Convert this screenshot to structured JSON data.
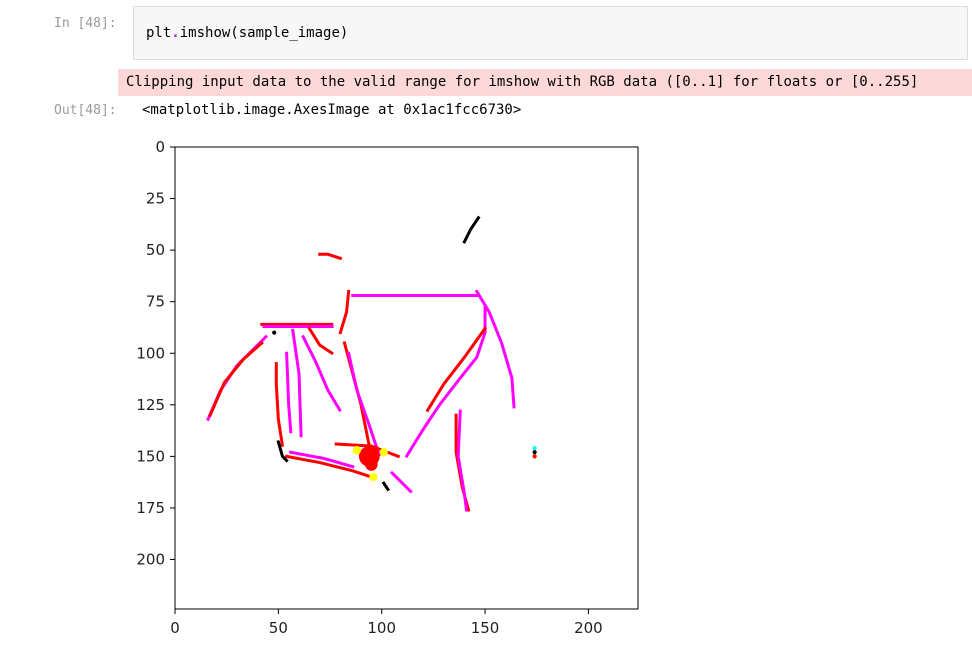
{
  "cell_in": {
    "prompt": "In [48]:",
    "code_object": "plt",
    "code_dot": ".",
    "code_call": "imshow(sample_image)"
  },
  "stderr": {
    "text": "Clipping input data to the valid range for imshow with RGB data ([0..1] for floats or [0..255]"
  },
  "cell_out": {
    "prompt": "Out[48]:",
    "text": "<matplotlib.image.AxesImage at 0x1ac1fcc6730>"
  },
  "chart_data": {
    "type": "image",
    "xlim": [
      0,
      224
    ],
    "ylim": [
      224,
      0
    ],
    "x_ticks": [
      "0",
      "50",
      "100",
      "150",
      "200"
    ],
    "y_ticks": [
      "0",
      "25",
      "50",
      "75",
      "100",
      "125",
      "150",
      "175",
      "200"
    ],
    "colors": {
      "red": "#ff0000",
      "magenta": "#ff00ff",
      "yellow": "#ffff00",
      "black": "#000000",
      "cyan": "#00ffff"
    },
    "strokes": [
      {
        "color": "magenta",
        "points": [
          [
            16,
            132
          ],
          [
            22,
            118
          ],
          [
            30,
            106
          ],
          [
            38,
            98
          ],
          [
            44,
            92
          ]
        ]
      },
      {
        "color": "red",
        "points": [
          [
            17,
            130
          ],
          [
            24,
            114
          ],
          [
            33,
            103
          ],
          [
            42,
            95
          ]
        ]
      },
      {
        "color": "red",
        "points": [
          [
            42,
            86
          ],
          [
            76,
            86
          ]
        ]
      },
      {
        "color": "magenta",
        "points": [
          [
            43,
            87
          ],
          [
            76,
            87
          ]
        ]
      },
      {
        "color": "magenta",
        "points": [
          [
            57,
            89
          ],
          [
            60,
            110
          ],
          [
            61,
            140
          ]
        ]
      },
      {
        "color": "red",
        "points": [
          [
            49,
            105
          ],
          [
            49,
            115
          ],
          [
            50,
            132
          ],
          [
            52,
            145
          ]
        ]
      },
      {
        "color": "magenta",
        "points": [
          [
            54,
            100
          ],
          [
            55,
            125
          ],
          [
            56,
            138
          ]
        ]
      },
      {
        "color": "magenta",
        "points": [
          [
            62,
            92
          ],
          [
            68,
            104
          ],
          [
            74,
            118
          ],
          [
            80,
            128
          ]
        ]
      },
      {
        "color": "red",
        "points": [
          [
            65,
            88
          ],
          [
            70,
            96
          ],
          [
            76,
            100
          ]
        ]
      },
      {
        "color": "red",
        "points": [
          [
            80,
            90
          ],
          [
            83,
            80
          ],
          [
            84,
            70
          ]
        ]
      },
      {
        "color": "magenta",
        "points": [
          [
            86,
            72
          ],
          [
            147,
            72
          ]
        ]
      },
      {
        "color": "magenta",
        "points": [
          [
            146,
            70
          ],
          [
            152,
            80
          ],
          [
            158,
            95
          ],
          [
            163,
            112
          ],
          [
            164,
            126
          ]
        ]
      },
      {
        "color": "magenta",
        "points": [
          [
            150,
            78
          ],
          [
            150,
            90
          ],
          [
            146,
            102
          ],
          [
            138,
            112
          ],
          [
            128,
            125
          ],
          [
            120,
            137
          ],
          [
            112,
            150
          ]
        ]
      },
      {
        "color": "red",
        "points": [
          [
            150,
            88
          ],
          [
            140,
            102
          ],
          [
            130,
            115
          ],
          [
            122,
            128
          ]
        ]
      },
      {
        "color": "red",
        "points": [
          [
            82,
            95
          ],
          [
            86,
            110
          ],
          [
            90,
            125
          ],
          [
            93,
            140
          ],
          [
            95,
            150
          ]
        ]
      },
      {
        "color": "magenta",
        "points": [
          [
            84,
            100
          ],
          [
            88,
            118
          ],
          [
            94,
            135
          ],
          [
            99,
            150
          ]
        ]
      },
      {
        "color": "red",
        "points": [
          [
            136,
            130
          ],
          [
            136,
            148
          ],
          [
            139,
            165
          ],
          [
            142,
            176
          ]
        ]
      },
      {
        "color": "magenta",
        "points": [
          [
            138,
            128
          ],
          [
            137,
            150
          ],
          [
            140,
            168
          ],
          [
            141,
            176
          ]
        ]
      },
      {
        "color": "red",
        "points": [
          [
            54,
            150
          ],
          [
            70,
            153
          ],
          [
            86,
            157
          ],
          [
            95,
            160
          ]
        ]
      },
      {
        "color": "magenta",
        "points": [
          [
            56,
            148
          ],
          [
            72,
            151
          ],
          [
            86,
            155
          ]
        ]
      },
      {
        "color": "red",
        "points": [
          [
            78,
            144
          ],
          [
            95,
            145
          ],
          [
            108,
            150
          ]
        ]
      },
      {
        "color": "magenta",
        "points": [
          [
            105,
            158
          ],
          [
            112,
            165
          ],
          [
            114,
            167
          ]
        ]
      },
      {
        "color": "red",
        "points": [
          [
            70,
            52
          ],
          [
            74,
            52
          ],
          [
            80,
            54
          ]
        ]
      },
      {
        "color": "black",
        "points": [
          [
            140,
            46
          ],
          [
            143,
            40
          ],
          [
            147,
            34
          ]
        ]
      },
      {
        "color": "black",
        "points": [
          [
            50,
            143
          ],
          [
            52,
            150
          ],
          [
            54,
            152
          ]
        ]
      },
      {
        "color": "black",
        "points": [
          [
            101,
            163
          ],
          [
            103,
            166
          ]
        ]
      }
    ],
    "blobs": [
      {
        "color": "red",
        "cx": 94,
        "cy": 150,
        "r": 5
      },
      {
        "color": "red",
        "cx": 95,
        "cy": 154,
        "r": 3
      },
      {
        "color": "yellow",
        "cx": 88,
        "cy": 147,
        "r": 2
      },
      {
        "color": "yellow",
        "cx": 101,
        "cy": 148,
        "r": 2
      },
      {
        "color": "yellow",
        "cx": 96,
        "cy": 160,
        "r": 2
      },
      {
        "color": "cyan",
        "cx": 174,
        "cy": 146,
        "r": 1
      },
      {
        "color": "black",
        "cx": 174,
        "cy": 148,
        "r": 1
      },
      {
        "color": "yellow",
        "cx": 174,
        "cy": 150,
        "r": 1
      },
      {
        "color": "red",
        "cx": 174,
        "cy": 150,
        "r": 1
      },
      {
        "color": "black",
        "cx": 48,
        "cy": 90,
        "r": 1
      }
    ]
  }
}
